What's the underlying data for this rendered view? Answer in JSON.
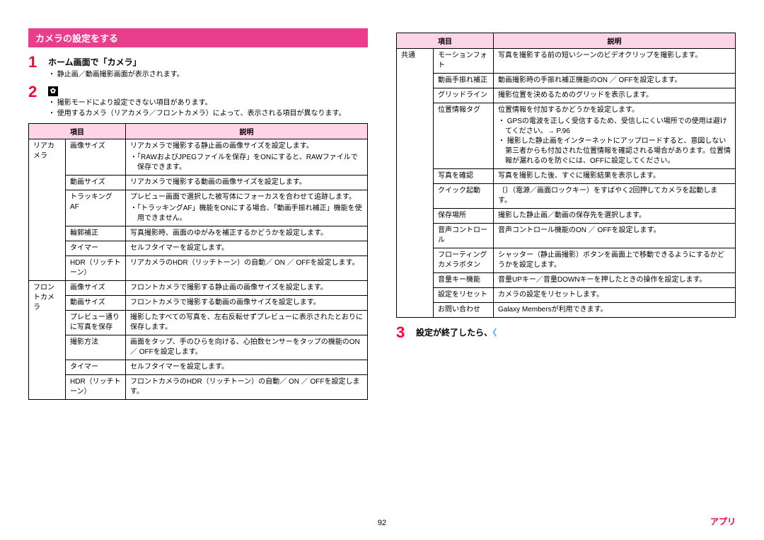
{
  "colors": {
    "section_header_bg": "#e83e8c",
    "section_header_fg": "#ffffff",
    "step_number": "#ff0033",
    "table_header_bg": "#fdd5e5",
    "border": "#000000",
    "footer_accent": "#ff0033",
    "chevron": "#00aaff"
  },
  "page_number": "92",
  "footer_label": "アプリ",
  "section_title": "カメラの設定をする",
  "steps": {
    "s1": {
      "num": "1",
      "title": "ホーム画面で「カメラ」",
      "bullets": [
        "・ 静止画／動画撮影画面が表示されます。"
      ]
    },
    "s2": {
      "num": "2",
      "bullets": [
        "・ 撮影モードにより設定できない項目があります。",
        "・ 使用するカメラ（リアカメラ／フロントカメラ）によって、表示される項目が異なります。"
      ]
    },
    "s3": {
      "num": "3",
      "title_pre": "設定が終了したら、"
    }
  },
  "table_headers": {
    "item": "項目",
    "desc": "説明"
  },
  "table1": [
    {
      "cat": "リアカメラ",
      "rows": [
        {
          "item": "画像サイズ",
          "desc": "リアカメラで撮影する静止画の画像サイズを設定します。",
          "extra": [
            "・「RAWおよびJPEGファイルを保存」をONにすると、RAWファイルで保存できます。"
          ]
        },
        {
          "item": "動画サイズ",
          "desc": "リアカメラで撮影する動画の画像サイズを設定します。"
        },
        {
          "item": "トラッキングAF",
          "desc": "プレビュー画面で選択した被写体にフォーカスを合わせて追跡します。",
          "extra": [
            "・「トラッキングAF」機能をONにする場合、「動画手振れ補正」機能を使用できません。"
          ]
        },
        {
          "item": "輪郭補正",
          "desc": "写真撮影時、画面のゆがみを補正するかどうかを設定します。"
        },
        {
          "item": "タイマー",
          "desc": "セルフタイマーを設定します。"
        },
        {
          "item": "HDR（リッチトーン）",
          "desc": "リアカメラのHDR（リッチトーン）の自動／ ON ／ OFFを設定します。"
        }
      ]
    },
    {
      "cat": "フロントカメラ",
      "rows": [
        {
          "item": "画像サイズ",
          "desc": "フロントカメラで撮影する静止画の画像サイズを設定します。"
        },
        {
          "item": "動画サイズ",
          "desc": "フロントカメラで撮影する動画の画像サイズを設定します。"
        },
        {
          "item": "プレビュー通りに写真を保存",
          "desc": "撮影したすべての写真を、左右反転せずプレビューに表示されたとおりに保存します。"
        },
        {
          "item": "撮影方法",
          "desc": "画面をタップ、手のひらを向ける、心拍数センサーをタップの機能のON ／ OFFを設定します。"
        },
        {
          "item": "タイマー",
          "desc": "セルフタイマーを設定します。"
        },
        {
          "item": "HDR（リッチトーン）",
          "desc": "フロントカメラのHDR（リッチトーン）の自動／ ON ／ OFFを設定します。"
        }
      ]
    }
  ],
  "table2": [
    {
      "cat": "共通",
      "rows": [
        {
          "item": "モーションフォト",
          "desc": "写真を撮影する前の短いシーンのビデオクリップを撮影します。"
        },
        {
          "item": "動画手振れ補正",
          "desc": "動画撮影時の手振れ補正機能のON ／ OFFを設定します。"
        },
        {
          "item": "グリッドライン",
          "desc": "撮影位置を決めるためのグリッドを表示します。"
        },
        {
          "item": "位置情報タグ",
          "desc": "位置情報を付加するかどうかを設定します。",
          "extra": [
            "・ GPSの電波を正しく受信するため、受信しにくい場所での使用は避けてください。→ P.96",
            "・ 撮影した静止画をインターネットにアップロードすると、意図しない第三者からも付加された位置情報を確認される場合があります。位置情報が漏れるのを防ぐには、OFFに設定してください。"
          ]
        },
        {
          "item": "写真を確認",
          "desc": "写真を撮影した後、すぐに撮影結果を表示します。"
        },
        {
          "item": "クイック起動",
          "desc": "〔〕（電源／画面ロックキー）をすばやく2回押してカメラを起動します。"
        },
        {
          "item": "保存場所",
          "desc": "撮影した静止画／動画の保存先を選択します。"
        },
        {
          "item": "音声コントロール",
          "desc": "音声コントロール機能のON ／ OFFを設定します。"
        },
        {
          "item": "フローティングカメラボタン",
          "desc": "シャッター（静止画撮影）ボタンを画面上で移動できるようにするかどうかを設定します。"
        },
        {
          "item": "音量キー機能",
          "desc": "音量UPキー／音量DOWNキーを押したときの操作を設定します。"
        },
        {
          "item": "設定をリセット",
          "desc": "カメラの設定をリセットします。"
        },
        {
          "item": "お問い合わせ",
          "desc": "Galaxy Membersが利用できます。"
        }
      ]
    }
  ]
}
